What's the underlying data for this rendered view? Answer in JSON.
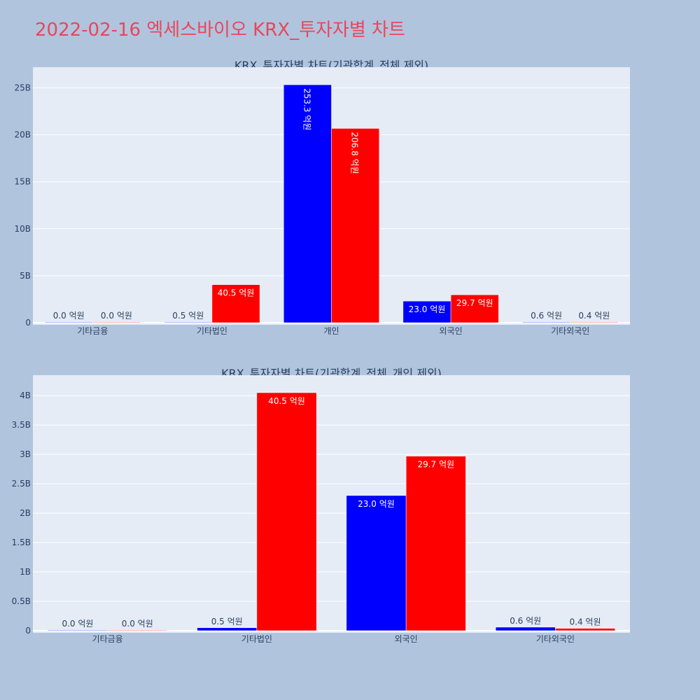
{
  "page": {
    "title": "2022-02-16 엑세스바이오 KRX_투자자별 차트"
  },
  "colors": {
    "background": "#b0c4de",
    "plot_bg": "#e5ecf6",
    "title": "#e8475a",
    "buy": "#0000ff",
    "sell": "#ff0000"
  },
  "chart_data": [
    {
      "type": "bar",
      "title": "KRX_투자자별 차트(기관합계_전체 제외)",
      "categories": [
        "기타금융",
        "기타법인",
        "개인",
        "외국인",
        "기타외국인"
      ],
      "series": [
        {
          "values": [
            0.0,
            0.05,
            25.33,
            2.3,
            0.06
          ],
          "labels": [
            "0.0 억원",
            "0.5 억원",
            "253.3 억원",
            "23.0 억원",
            "0.6 억원"
          ]
        },
        {
          "values": [
            0.0,
            4.05,
            20.68,
            2.97,
            0.04
          ],
          "labels": [
            "0.0 억원",
            "40.5 억원",
            "206.8 억원",
            "29.7 억원",
            "0.4 억원"
          ]
        }
      ],
      "ylim": [
        0,
        26.9
      ],
      "yticks": [
        0,
        5,
        10,
        15,
        20,
        25
      ],
      "ytick_labels": [
        "0",
        "5B",
        "10B",
        "15B",
        "20B",
        "25B"
      ],
      "grid": true
    },
    {
      "type": "bar",
      "title": "KRX_투자자별 차트(기관합계_전체_개인 제외)",
      "categories": [
        "기타금융",
        "기타법인",
        "외국인",
        "기타외국인"
      ],
      "series": [
        {
          "values": [
            0.0,
            0.05,
            2.3,
            0.06
          ],
          "labels": [
            "0.0 억원",
            "0.5 억원",
            "23.0 억원",
            "0.6 억원"
          ]
        },
        {
          "values": [
            0.0,
            4.05,
            2.97,
            0.04
          ],
          "labels": [
            "0.0 억원",
            "40.5 억원",
            "29.7 억원",
            "0.4 억원"
          ]
        }
      ],
      "ylim": [
        0,
        4.3
      ],
      "yticks": [
        0,
        0.5,
        1,
        1.5,
        2,
        2.5,
        3,
        3.5,
        4
      ],
      "ytick_labels": [
        "0",
        "0.5B",
        "1B",
        "1.5B",
        "2B",
        "2.5B",
        "3B",
        "3.5B",
        "4B"
      ],
      "grid": true
    }
  ]
}
